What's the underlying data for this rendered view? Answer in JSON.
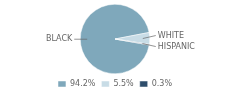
{
  "chart_data": {
    "type": "pie",
    "categories": [
      "BLACK",
      "WHITE",
      "HISPANIC"
    ],
    "values": [
      94.2,
      5.5,
      0.3
    ],
    "value_labels": [
      "94.2%",
      "5.5%",
      "0.3%"
    ],
    "colors": [
      "#7fa8bb",
      "#c8dce6",
      "#2e4d6b"
    ],
    "legend": "bottom"
  }
}
